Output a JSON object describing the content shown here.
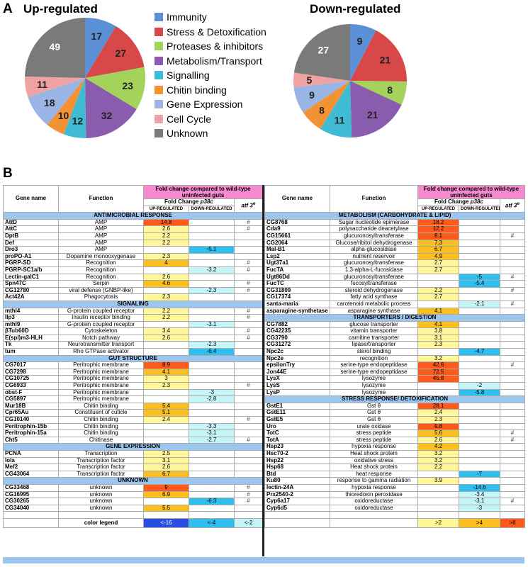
{
  "panel_a_label": "A",
  "panel_b_label": "B",
  "pies": {
    "up": {
      "title": "Up-regulated",
      "slices": [
        17,
        27,
        23,
        32,
        12,
        10,
        18,
        11,
        49
      ]
    },
    "down": {
      "title": "Down-regulated",
      "slices": [
        9,
        21,
        8,
        21,
        11,
        8,
        9,
        5,
        27
      ]
    }
  },
  "legend": [
    {
      "label": "Immunity",
      "color": "#5b8fd6"
    },
    {
      "label": "Stress & Detoxification",
      "color": "#d94848"
    },
    {
      "label": "Proteases & inhibitors",
      "color": "#a5d25a"
    },
    {
      "label": "Metabolism/Transport",
      "color": "#8a5cae"
    },
    {
      "label": "Signalling",
      "color": "#3fbcd4"
    },
    {
      "label": "Chitin binding",
      "color": "#f39233"
    },
    {
      "label": "Gene Expression",
      "color": "#9ab4e6"
    },
    {
      "label": "Cell Cycle",
      "color": "#efa2a2"
    },
    {
      "label": "Unknown",
      "color": "#7a7a7a"
    }
  ],
  "colors": {
    "up_low": "#fff79a",
    "up_mid": "#fbbf1f",
    "up_high": "#ff5a1a",
    "down_low": "#c6f5f8",
    "down_mid": "#2fbfee",
    "down_high": "#2c4ee0"
  },
  "headers": {
    "gene": "Gene name",
    "function": "Function",
    "fold": "Fold change compared to wild-type uninfected guts",
    "fold_sub": "Fold Change",
    "p38c": "p38c",
    "atf": "atf 3",
    "atf_sup": "e",
    "up": "UP-REGULATED",
    "down": "DOWN-REGULATED"
  },
  "left": [
    {
      "s": "ANTIMICROBIAL RESPONSE"
    },
    {
      "g": "AttD",
      "f": "AMP",
      "u": "14.8",
      "uc": "h",
      "m": "#"
    },
    {
      "g": "AttC",
      "f": "AMP",
      "u": "2.6",
      "uc": "l",
      "m": "#"
    },
    {
      "g": "DptB",
      "f": "AMP",
      "u": "2.2",
      "uc": "l"
    },
    {
      "g": "Def",
      "f": "AMP",
      "u": "2.2",
      "uc": "l"
    },
    {
      "g": "Dro3",
      "f": "AMP",
      "d": "-5.1",
      "dc": "m"
    },
    {
      "g": "proPO-A1",
      "f": "Dopamine monooxygenase",
      "u": "2.3",
      "uc": "l"
    },
    {
      "g": "PGRP-SD",
      "f": "Recognition",
      "u": "4",
      "uc": "m",
      "m": "#"
    },
    {
      "g": "PGRP-SC1a/b",
      "f": "Recognition",
      "d": "-3.2",
      "dc": "l",
      "m": "#"
    },
    {
      "g": "Lectin-galC1",
      "f": "Recognition",
      "u": "2.6",
      "uc": "l"
    },
    {
      "g": "Spn47C",
      "f": "Serpin",
      "u": "4.6",
      "uc": "m",
      "m": "#"
    },
    {
      "g": "CG12780",
      "f": "viral defense (GNBP-like)",
      "d": "-2.3",
      "dc": "l",
      "m": "#"
    },
    {
      "g": "Act42A",
      "f": "Phagocytosis",
      "u": "2.3",
      "uc": "l"
    },
    {
      "s": "SIGNALING"
    },
    {
      "g": "mthl4",
      "f": "G-protein coupled receptor",
      "u": "2.2",
      "uc": "l",
      "m": "#"
    },
    {
      "g": "Ilp3",
      "f": "Insulin receptor binding",
      "u": "2.2",
      "uc": "l",
      "m": "#"
    },
    {
      "g": "mthl9",
      "f": "G-protein coupled receptor",
      "d": "-3.1",
      "dc": "l"
    },
    {
      "g": "βTub60D",
      "f": "Cytoskeleton",
      "u": "3.4",
      "uc": "l",
      "m": "#"
    },
    {
      "g": "E(spl)m3-HLH",
      "f": "Notch pathway",
      "u": "2.6",
      "uc": "l",
      "m": "#"
    },
    {
      "g": "Tk",
      "f": "Neurotransmitter transport",
      "d": "-2.3",
      "dc": "l"
    },
    {
      "g": "tum",
      "f": "Rho GTPase activator",
      "d": "-6.4",
      "dc": "m"
    },
    {
      "s": "GUT STRUCTURE"
    },
    {
      "g": "CG7017",
      "f": "Peritrophic membrane",
      "u": "8.9",
      "uc": "h"
    },
    {
      "g": "CG7298",
      "f": "Peritrophic membrane",
      "u": "4.1",
      "uc": "m"
    },
    {
      "g": "CG10725",
      "f": "Peritrophic membrane",
      "u": "3",
      "uc": "l"
    },
    {
      "g": "CG6933",
      "f": "Peritrophic membrane",
      "u": "2.3",
      "uc": "l",
      "m": "#"
    },
    {
      "g": "obst-F",
      "f": "Peritrophic membrane",
      "d": "-3",
      "dc": "l"
    },
    {
      "g": "CG5897",
      "f": "Peritrophic membrane",
      "d": "-2.8",
      "dc": "l"
    },
    {
      "g": "Mur18B",
      "f": "Chitin binding",
      "u": "5.4",
      "uc": "m"
    },
    {
      "g": "Cpr65Au",
      "f": "Constituent of cuticle",
      "u": "5.1",
      "uc": "m"
    },
    {
      "g": "CG10140",
      "f": "Chitin binding",
      "u": "2.4",
      "uc": "l",
      "m": "#"
    },
    {
      "g": "Peritrophin-15b",
      "f": "Chitin binding",
      "d": "-3.3",
      "dc": "l"
    },
    {
      "g": "Peritrophin-15a",
      "f": "Chitin binding",
      "d": "-3.1",
      "dc": "l"
    },
    {
      "g": "Cht5",
      "f": "Chitinase",
      "d": "-2.7",
      "dc": "l",
      "m": "#"
    },
    {
      "s": "GENE EXPRESSION"
    },
    {
      "g": "PCNA",
      "f": "Transcription",
      "u": "2.5",
      "uc": "l"
    },
    {
      "g": "lola",
      "f": "Transcription factor",
      "u": "3.1",
      "uc": "l"
    },
    {
      "g": "Mef2",
      "f": "Transcription factor",
      "u": "2.6",
      "uc": "l"
    },
    {
      "g": "CG43064",
      "f": "Transcription factor",
      "u": "6.7",
      "uc": "m"
    },
    {
      "s": "UNKNOWN"
    },
    {
      "g": "CG33468",
      "f": "unknown",
      "u": "9",
      "uc": "h",
      "m": "#"
    },
    {
      "g": "CG16995",
      "f": "unknown",
      "u": "6.9",
      "uc": "m",
      "m": "#"
    },
    {
      "g": "CG30265",
      "f": "unknown",
      "d": "-6.3",
      "dc": "m",
      "m": "#"
    },
    {
      "g": "CG34040",
      "f": "unknown",
      "u": "5.5",
      "uc": "m"
    },
    {
      "e": true
    }
  ],
  "right": [
    {
      "s": "METABOLISM (CARBOHYDRATE & LIPID)"
    },
    {
      "g": "CG8768",
      "f": "Sugar nucleotide epimerase",
      "u": "18.2",
      "uc": "h"
    },
    {
      "g": "Cda9",
      "f": "polysaccharide deacetylase",
      "u": "12.2",
      "uc": "h"
    },
    {
      "g": "CG15661",
      "f": "glucuronosyltransferase",
      "u": "8.1",
      "uc": "h",
      "m": "#"
    },
    {
      "g": "CG2064",
      "f": "Glucose/ribitol dehydrogenase",
      "u": "7.3",
      "uc": "m"
    },
    {
      "g": "Mal-B1",
      "f": "alpha-glucosidase",
      "u": "6.7",
      "uc": "m"
    },
    {
      "g": "Lsp2",
      "f": "nutrient reservoir",
      "u": "4.9",
      "uc": "m"
    },
    {
      "g": "Ugt37a1",
      "f": "glucuronosyltransferase",
      "u": "2.7",
      "uc": "l"
    },
    {
      "g": "FucTA",
      "f": "1,3-alpha-L-fucosidase",
      "u": "2.7",
      "uc": "l"
    },
    {
      "g": "Ugt86Dd",
      "f": "glucuronosyltransferase",
      "d": "-5",
      "dc": "m",
      "m": "#"
    },
    {
      "g": "FucTC",
      "f": "fucosyltransferase",
      "d": "-5.4",
      "dc": "m"
    },
    {
      "g": "CG31809",
      "f": "steroid dehydrogenase",
      "u": "2.2",
      "uc": "l",
      "m": "#"
    },
    {
      "g": "CG17374",
      "f": "fatty acid synthase",
      "u": "2.7",
      "uc": "l"
    },
    {
      "g": "santa-maria",
      "f": "carotenoid metabolic process",
      "d": "-2.1",
      "dc": "l",
      "m": "#"
    },
    {
      "g": "asparagine-synthetase",
      "f": "asparagine synthase",
      "u": "4.1",
      "uc": "m"
    },
    {
      "s": "TRANSPORTERS / DIGESTION"
    },
    {
      "g": "CG7882",
      "f": "glucose transporter",
      "u": "4.1",
      "uc": "m"
    },
    {
      "g": "CG42235",
      "f": "vitamin transporter",
      "u": "3.8",
      "uc": "l"
    },
    {
      "g": "CG3790",
      "f": "carnitine transporter",
      "u": "3.1",
      "uc": "l"
    },
    {
      "g": "CG31272",
      "f": "lipase/transporter",
      "u": "2.3",
      "uc": "l"
    },
    {
      "g": "Npc2c",
      "f": "sterol binding",
      "d": "-4.7",
      "dc": "m"
    },
    {
      "g": "Npc2e",
      "f": "recognition",
      "u": "3.2",
      "uc": "l"
    },
    {
      "g": "epsilonTry",
      "f": "serine-type endopeptidase",
      "u": "42.6",
      "uc": "h",
      "m": "#"
    },
    {
      "g": "Jon44E",
      "f": "serine-type endopeptidase",
      "u": "72.5",
      "uc": "h"
    },
    {
      "g": "LysX",
      "f": "lysozyme",
      "u": "45.8",
      "uc": "h"
    },
    {
      "g": "LysS",
      "f": "lysozyme",
      "d": "-2",
      "dc": "l"
    },
    {
      "g": "LysP",
      "f": "lysozyme",
      "d": "-5.8",
      "dc": "m"
    },
    {
      "s": "STRESS RESPONSE/ DETOXIFICATION"
    },
    {
      "g": "GstE1",
      "f": "Gst θ",
      "u": "28.1",
      "uc": "h"
    },
    {
      "g": "GstE11",
      "f": "Gst θ",
      "u": "2.4",
      "uc": "l"
    },
    {
      "g": "GstE5",
      "f": "Gst θ",
      "u": "2.3",
      "uc": "l"
    },
    {
      "g": "Uro",
      "f": "urate oxidase",
      "u": "9.8",
      "uc": "h"
    },
    {
      "g": "TotC",
      "f": "stress peptide",
      "u": "5.6",
      "uc": "m",
      "m": "#"
    },
    {
      "g": "TotA",
      "f": "stress peptide",
      "u": "2.6",
      "uc": "l",
      "m": "#"
    },
    {
      "g": "Hsp23",
      "f": "hypoxia response",
      "u": "4.2",
      "uc": "m"
    },
    {
      "g": "Hsc70-2",
      "f": "Heat shock protein",
      "u": "3.2",
      "uc": "l"
    },
    {
      "g": "Hsp22",
      "f": "oxidative stress",
      "u": "3.2",
      "uc": "l"
    },
    {
      "g": "Hsp68",
      "f": "Heat shock protein",
      "u": "2.2",
      "uc": "l"
    },
    {
      "g": "Btd",
      "f": "heat response",
      "d": "-7",
      "dc": "m"
    },
    {
      "g": "Ku80",
      "f": "response to gamma radiation",
      "u": "3.9",
      "uc": "l"
    },
    {
      "g": "lectin-24A",
      "f": "hypoxia response",
      "d": "-14.6",
      "dc": "m"
    },
    {
      "g": "Prx2540-2",
      "f": "thioredoxin peroxidase",
      "d": "-3.4",
      "dc": "l"
    },
    {
      "g": "Cyp6a17",
      "f": "oxidoreductase",
      "d": "-3.1",
      "dc": "l",
      "m": "#"
    },
    {
      "g": "Cyp6d5",
      "f": "oxidoreductase",
      "d": "-3",
      "dc": "l"
    },
    {
      "e": true
    }
  ],
  "color_legend": {
    "label": "color legend",
    "down_high": "<-16",
    "down_mid": "<-4",
    "down_low": "<-2",
    "up_low": ">2",
    "up_mid": ">4",
    "up_high": ">8"
  }
}
